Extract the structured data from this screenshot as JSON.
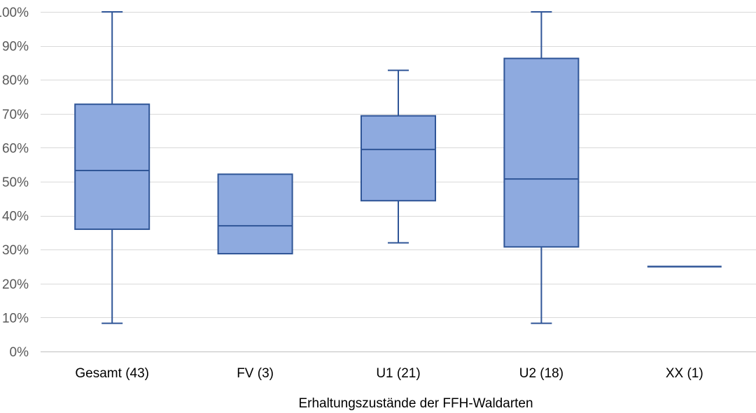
{
  "chart_data": {
    "type": "boxplot",
    "title": "",
    "xlabel": "Erhaltungszustände der FFH-Waldarten",
    "ylabel": "",
    "ylim": [
      0,
      100
    ],
    "yticks": [
      0,
      10,
      20,
      30,
      40,
      50,
      60,
      70,
      80,
      90,
      100
    ],
    "ytick_labels": [
      "0%",
      "10%",
      "20%",
      "30%",
      "40%",
      "50%",
      "60%",
      "70%",
      "80%",
      "90%",
      "100%"
    ],
    "categories": [
      "Gesamt (43)",
      "FV (3)",
      "U1 (21)",
      "U2 (18)",
      "XX (1)"
    ],
    "boxes": [
      {
        "category": "Gesamt (43)",
        "min": 8.3,
        "q1": 36,
        "median": 53.3,
        "q3": 72.8,
        "max": 100
      },
      {
        "category": "FV (3)",
        "min": 28.8,
        "q1": 28.8,
        "median": 37,
        "q3": 52.2,
        "max": 52.2
      },
      {
        "category": "U1 (21)",
        "min": 32,
        "q1": 44.4,
        "median": 59.5,
        "q3": 69.4,
        "max": 82.8
      },
      {
        "category": "U2 (18)",
        "min": 8.3,
        "q1": 30.8,
        "median": 50.8,
        "q3": 86.3,
        "max": 100
      },
      {
        "category": "XX (1)",
        "min": 25,
        "q1": 25,
        "median": 25,
        "q3": 25,
        "max": 25
      }
    ],
    "grid": true,
    "legend": "none"
  },
  "colors": {
    "box_fill": "#8eaadf",
    "box_stroke": "#2f5597",
    "grid": "#d9d9d9",
    "tick_text": "#595959"
  }
}
